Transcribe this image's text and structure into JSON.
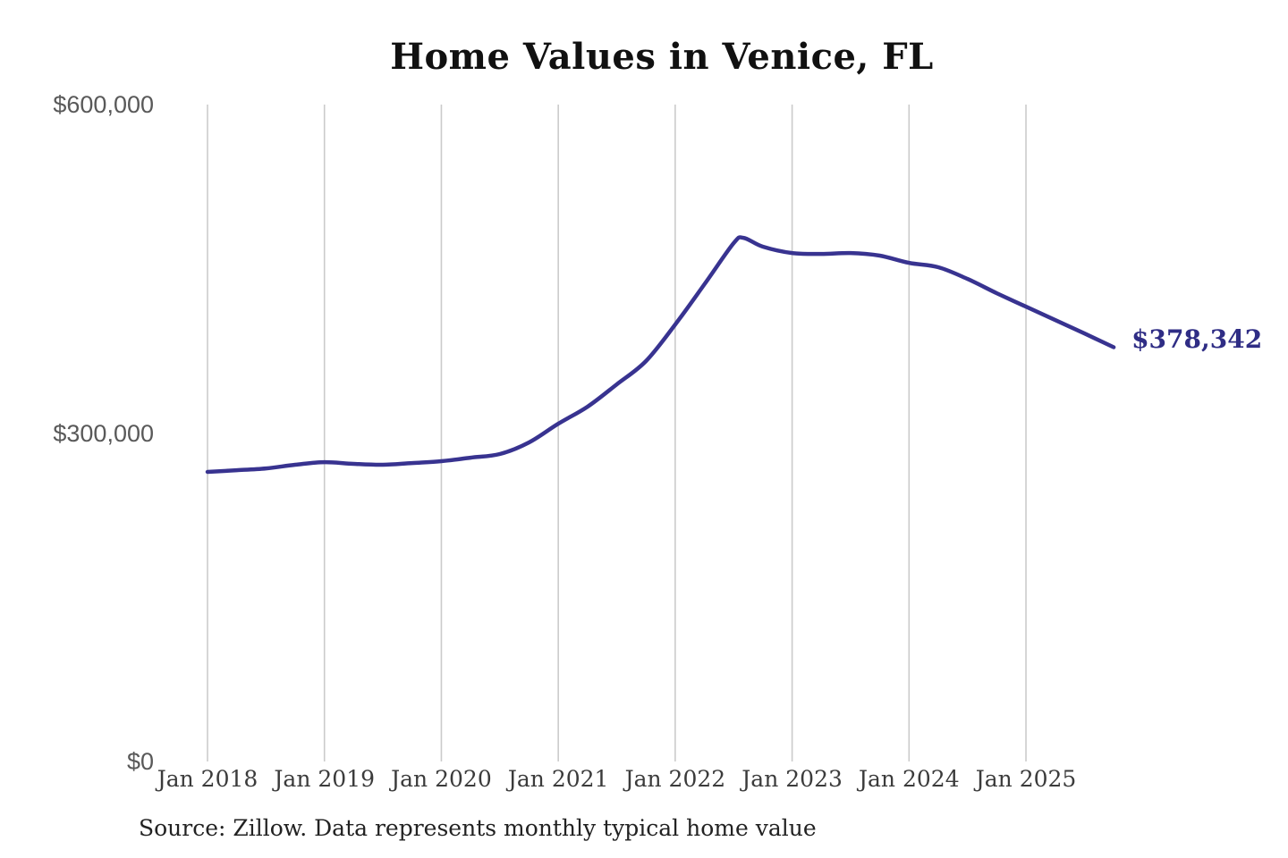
{
  "title": "Home Values in Venice, FL",
  "source_note": "Source: Zillow. Data represents monthly typical home value",
  "end_label": "$378,342",
  "colors": {
    "line": "#383390",
    "end_label": "#2f2d85",
    "grid": "#cbcbcb",
    "y_tick_text": "#595959",
    "x_tick_text": "#3b3b3b",
    "title_text": "#111111",
    "source_text": "#222222",
    "background": "#ffffff"
  },
  "chart_data": {
    "type": "line",
    "title": "Home Values in Venice, FL",
    "xlabel": "",
    "ylabel": "",
    "ylim": [
      0,
      600000
    ],
    "grid": "vertical-only",
    "legend": "none",
    "x_unit": "months since Jan 2018",
    "x_tick_labels": [
      "Jan 2018",
      "Jan 2019",
      "Jan 2020",
      "Jan 2021",
      "Jan 2022",
      "Jan 2023",
      "Jan 2024",
      "Jan 2025"
    ],
    "x_tick_months": [
      0,
      12,
      24,
      36,
      48,
      60,
      72,
      84
    ],
    "y_ticks": [
      {
        "label": "$600,000",
        "value": 600000
      },
      {
        "label": "$300,000",
        "value": 300000
      },
      {
        "label": "$0",
        "value": 0
      }
    ],
    "last_point_label": "$378,342",
    "series": [
      {
        "name": "Monthly typical home value",
        "points": [
          [
            0,
            264500
          ],
          [
            3,
            266000
          ],
          [
            6,
            267700
          ],
          [
            9,
            271000
          ],
          [
            12,
            273400
          ],
          [
            15,
            271800
          ],
          [
            18,
            271000
          ],
          [
            21,
            272600
          ],
          [
            24,
            274300
          ],
          [
            27,
            277500
          ],
          [
            30,
            280800
          ],
          [
            33,
            291400
          ],
          [
            36,
            308500
          ],
          [
            39,
            324000
          ],
          [
            42,
            344400
          ],
          [
            45,
            365700
          ],
          [
            48,
            399100
          ],
          [
            51,
            435900
          ],
          [
            54,
            473400
          ],
          [
            55,
            478300
          ],
          [
            57,
            470200
          ],
          [
            60,
            464400
          ],
          [
            63,
            463600
          ],
          [
            66,
            464400
          ],
          [
            69,
            462000
          ],
          [
            72,
            455400
          ],
          [
            75,
            451400
          ],
          [
            78,
            440700
          ],
          [
            81,
            427700
          ],
          [
            84,
            415400
          ],
          [
            87,
            403200
          ],
          [
            90,
            390900
          ],
          [
            93,
            378342
          ]
        ]
      }
    ]
  }
}
